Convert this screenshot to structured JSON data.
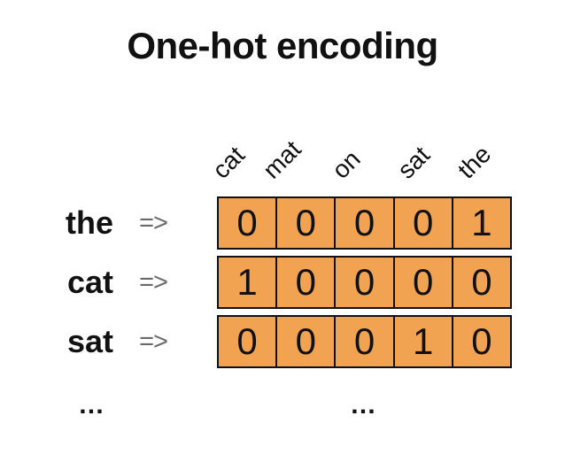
{
  "title": "One-hot encoding",
  "colors": {
    "cell_fill": "#F2A351",
    "cell_border": "#111111",
    "arrow_color": "#6A6A6A",
    "text_color": "#111111",
    "bg_color": "#FFFFFF"
  },
  "table": {
    "arrow_symbol": "=>",
    "columns": [
      "cat",
      "mat",
      "on",
      "sat",
      "the"
    ],
    "rows": [
      {
        "word": "the",
        "values": [
          0,
          0,
          0,
          0,
          1
        ]
      },
      {
        "word": "cat",
        "values": [
          1,
          0,
          0,
          0,
          0
        ]
      },
      {
        "word": "sat",
        "values": [
          0,
          0,
          0,
          1,
          0
        ]
      }
    ]
  },
  "ellipsis": {
    "rows_more": "…",
    "vectors_more": "…"
  }
}
